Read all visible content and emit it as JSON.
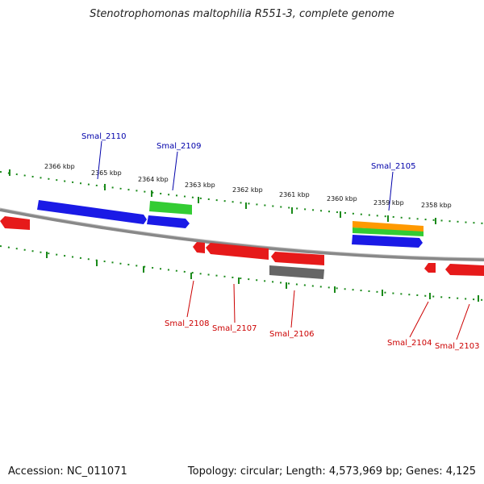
{
  "title": "Stenotrophomonas maltophilia R551-3, complete genome",
  "footer": {
    "accession": "Accession: NC_011071",
    "summary": "Topology: circular; Length: 4,573,969 bp; Genes: 4,125"
  },
  "colors": {
    "forward_gene": "#1a1ae6",
    "reverse_gene": "#e61a1a",
    "rna_gene": "#33cc33",
    "pseudo_gene": "#666666",
    "other_gene": "#ff9900",
    "tick": "#1a8a1a",
    "backbone": "#888888",
    "forward_label": "#0000aa",
    "reverse_label": "#cc0000"
  },
  "scale_labels": [
    "2366 kbp",
    "2365 kbp",
    "2364 kbp",
    "2363 kbp",
    "2362 kbp",
    "2361 kbp",
    "2360 kbp",
    "2359 kbp",
    "2358 kbp"
  ],
  "forward_genes": [
    "Smal_2110",
    "Smal_2109",
    "Smal_2105"
  ],
  "reverse_genes": [
    "Smal_2108",
    "Smal_2107",
    "Smal_2106",
    "Smal_2104",
    "Smal_2103"
  ]
}
